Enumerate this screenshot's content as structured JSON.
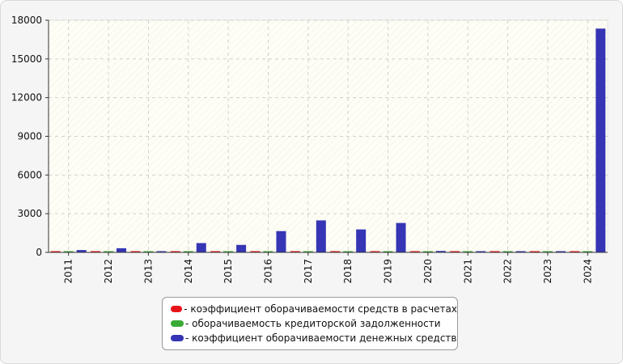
{
  "chart_data": {
    "type": "bar",
    "categories": [
      "2011",
      "2012",
      "2013",
      "2014",
      "2015",
      "2016",
      "2017",
      "2018",
      "2019",
      "2020",
      "2021",
      "2022",
      "2023",
      "2024"
    ],
    "series": [
      {
        "name": "- коэффициент оборачиваемости средств в расчетах",
        "color": "#e8141a",
        "values": [
          40,
          40,
          40,
          40,
          40,
          40,
          40,
          40,
          40,
          40,
          40,
          40,
          40,
          40
        ]
      },
      {
        "name": "- оборачиваемость кредиторской задолженности",
        "color": "#3aaa35",
        "values": [
          30,
          30,
          30,
          30,
          30,
          30,
          30,
          30,
          30,
          30,
          30,
          30,
          30,
          30
        ]
      },
      {
        "name": "- коэффициент оборачиваемости денежных средств",
        "color": "#3535b5",
        "values": [
          180,
          320,
          20,
          720,
          580,
          1650,
          2480,
          1780,
          2280,
          110,
          40,
          60,
          50,
          17350
        ]
      }
    ],
    "ylim": [
      0,
      18000
    ],
    "yticks": [
      0,
      3000,
      6000,
      9000,
      12000,
      15000,
      18000
    ],
    "ytick_labels": [
      "0",
      "3000",
      "6000",
      "9000",
      "12000",
      "15000",
      "18000"
    ],
    "grid": true,
    "legend_position": "bottom",
    "title": "",
    "xlabel": "",
    "ylabel": ""
  }
}
